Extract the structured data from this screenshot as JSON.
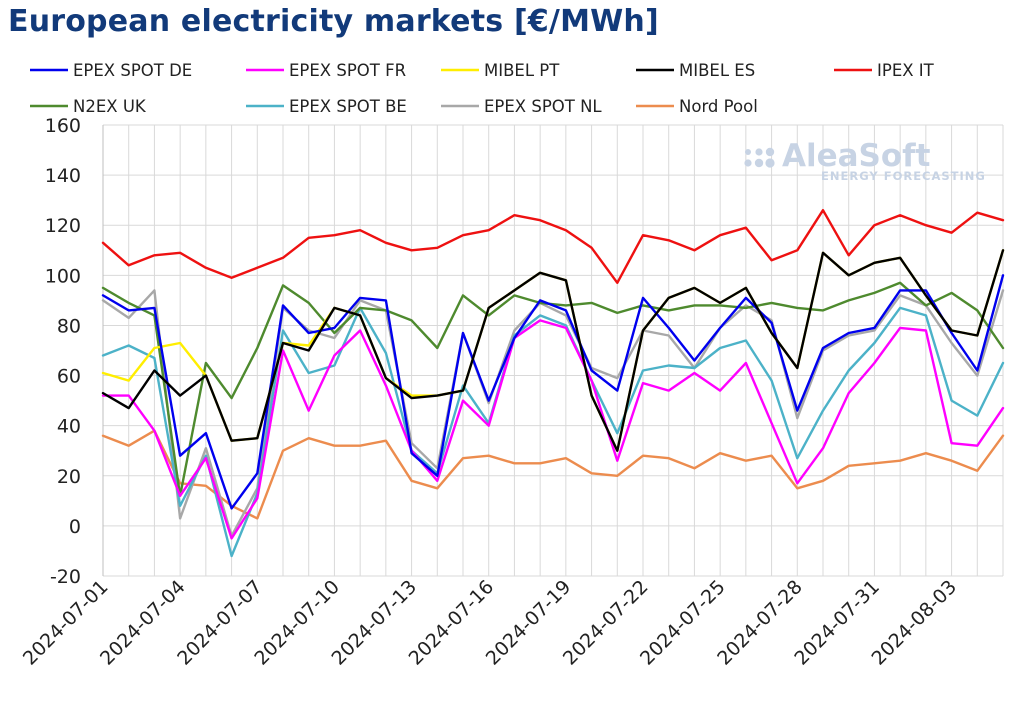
{
  "chart_data": {
    "type": "line",
    "title": "European electricity markets [€/MWh]",
    "xlabel": "",
    "ylabel": "",
    "ylim": [
      -20,
      160
    ],
    "yticks": [
      -20,
      0,
      20,
      40,
      60,
      80,
      100,
      120,
      140,
      160
    ],
    "grid": true,
    "legend_position": "top",
    "watermark": {
      "name": "AleaSoft",
      "tagline": "ENERGY FORECASTING"
    },
    "x": [
      "2024-07-01",
      "2024-07-02",
      "2024-07-03",
      "2024-07-04",
      "2024-07-05",
      "2024-07-06",
      "2024-07-07",
      "2024-07-08",
      "2024-07-09",
      "2024-07-10",
      "2024-07-11",
      "2024-07-12",
      "2024-07-13",
      "2024-07-14",
      "2024-07-15",
      "2024-07-16",
      "2024-07-17",
      "2024-07-18",
      "2024-07-19",
      "2024-07-20",
      "2024-07-21",
      "2024-07-22",
      "2024-07-23",
      "2024-07-24",
      "2024-07-25",
      "2024-07-26",
      "2024-07-27",
      "2024-07-28",
      "2024-07-29",
      "2024-07-30",
      "2024-07-31",
      "2024-08-01",
      "2024-08-02",
      "2024-08-03",
      "2024-08-04",
      "2024-08-05"
    ],
    "x_tick_labels": [
      "2024-07-01",
      "2024-07-04",
      "2024-07-07",
      "2024-07-10",
      "2024-07-13",
      "2024-07-16",
      "2024-07-19",
      "2024-07-22",
      "2024-07-25",
      "2024-07-28",
      "2024-07-31",
      "2024-08-03"
    ],
    "series": [
      {
        "name": "EPEX SPOT DE",
        "color": "#0000ee",
        "values": [
          92,
          86,
          87,
          28,
          37,
          7,
          21,
          88,
          77,
          79,
          91,
          90,
          29,
          20,
          77,
          50,
          75,
          90,
          86,
          62,
          54,
          91,
          79,
          66,
          79,
          91,
          81,
          46,
          71,
          77,
          79,
          94,
          94,
          77,
          62,
          100
        ]
      },
      {
        "name": "EPEX SPOT FR",
        "color": "#ff00ff",
        "values": [
          52,
          52,
          38,
          12,
          27,
          -5,
          11,
          70,
          46,
          68,
          78,
          56,
          30,
          18,
          50,
          40,
          75,
          82,
          79,
          58,
          26,
          57,
          54,
          61,
          54,
          65,
          41,
          17,
          31,
          53,
          65,
          79,
          78,
          33,
          32,
          47
        ]
      },
      {
        "name": "MIBEL PT",
        "color": "#ffee00",
        "values": [
          61,
          58,
          71,
          73,
          60,
          34,
          35,
          73,
          72,
          87,
          84,
          59,
          52,
          52,
          54,
          87,
          94,
          101,
          98,
          52,
          30,
          78,
          91,
          95,
          89,
          95,
          77,
          63,
          109,
          100,
          105,
          107,
          92,
          78,
          76,
          110
        ]
      },
      {
        "name": "MIBEL ES",
        "color": "#000000",
        "values": [
          53,
          47,
          62,
          52,
          60,
          34,
          35,
          73,
          70,
          87,
          84,
          59,
          51,
          52,
          54,
          87,
          94,
          101,
          98,
          52,
          30,
          78,
          91,
          95,
          89,
          95,
          77,
          63,
          109,
          100,
          105,
          107,
          92,
          78,
          76,
          110
        ]
      },
      {
        "name": "IPEX IT",
        "color": "#ee1111",
        "values": [
          113,
          104,
          108,
          109,
          103,
          99,
          103,
          107,
          115,
          116,
          118,
          113,
          110,
          111,
          116,
          118,
          124,
          122,
          118,
          111,
          97,
          116,
          114,
          110,
          116,
          119,
          106,
          110,
          126,
          108,
          120,
          124,
          120,
          117,
          125,
          122
        ]
      },
      {
        "name": "N2EX UK",
        "color": "#4e8a2e",
        "values": [
          95,
          89,
          84,
          12,
          65,
          51,
          71,
          96,
          89,
          77,
          87,
          86,
          82,
          71,
          92,
          84,
          92,
          89,
          88,
          89,
          85,
          88,
          86,
          88,
          88,
          87,
          89,
          87,
          86,
          90,
          93,
          97,
          88,
          93,
          86,
          71
        ]
      },
      {
        "name": "EPEX SPOT BE",
        "color": "#4cb2c8",
        "values": [
          68,
          72,
          67,
          8,
          28,
          -12,
          13,
          78,
          61,
          64,
          87,
          69,
          30,
          21,
          56,
          41,
          76,
          84,
          80,
          58,
          37,
          62,
          64,
          63,
          71,
          74,
          58,
          27,
          46,
          62,
          73,
          87,
          84,
          50,
          44,
          65
        ]
      },
      {
        "name": "EPEX SPOT NL",
        "color": "#a8a8a8",
        "values": [
          90,
          83,
          94,
          3,
          31,
          -4,
          15,
          87,
          78,
          75,
          90,
          86,
          33,
          23,
          77,
          49,
          78,
          89,
          84,
          63,
          59,
          78,
          76,
          63,
          79,
          88,
          82,
          43,
          70,
          76,
          78,
          92,
          88,
          73,
          60,
          94
        ]
      },
      {
        "name": "Nord Pool",
        "color": "#ec8c4e",
        "values": [
          36,
          32,
          38,
          17,
          16,
          8,
          3,
          30,
          35,
          32,
          32,
          34,
          18,
          15,
          27,
          28,
          25,
          25,
          27,
          21,
          20,
          28,
          27,
          23,
          29,
          26,
          28,
          15,
          18,
          24,
          25,
          26,
          29,
          26,
          22,
          36
        ]
      }
    ]
  }
}
